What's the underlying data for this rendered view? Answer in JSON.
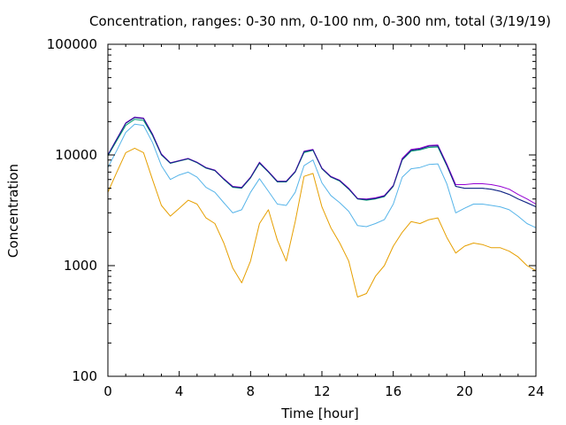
{
  "chart_data": {
    "type": "line",
    "title": "Concentration, ranges: 0-30 nm, 0-100 nm, 0-300 nm, total (3/19/19)",
    "xlabel": "Time [hour]",
    "ylabel": "Concentration",
    "xlim": [
      0,
      24
    ],
    "ylim": [
      100,
      100000
    ],
    "yscale": "log",
    "grid": false,
    "x_ticks": [
      0,
      4,
      8,
      12,
      16,
      20,
      24
    ],
    "x_tick_labels": [
      "0",
      "4",
      "8",
      "12",
      "16",
      "20",
      "24"
    ],
    "y_ticks": [
      100,
      1000,
      10000,
      100000
    ],
    "y_tick_labels": [
      "100",
      "1000",
      "10000",
      "100000"
    ],
    "x": [
      0,
      0.5,
      1,
      1.5,
      2,
      2.5,
      3,
      3.5,
      4,
      4.5,
      5,
      5.5,
      6,
      6.5,
      7,
      7.5,
      8,
      8.5,
      9,
      9.5,
      10,
      10.5,
      11,
      11.5,
      12,
      12.5,
      13,
      13.5,
      14,
      14.5,
      15,
      15.5,
      16,
      16.5,
      17,
      17.5,
      18,
      18.5,
      19,
      19.5,
      20,
      20.5,
      21,
      21.5,
      22,
      22.5,
      23,
      23.5,
      24
    ],
    "series": [
      {
        "color": "#e69f00",
        "values": [
          4600,
          7000,
          10500,
          11500,
          10500,
          6000,
          3500,
          2800,
          3300,
          3900,
          3600,
          2700,
          2400,
          1600,
          950,
          700,
          1100,
          2400,
          3200,
          1700,
          1100,
          2500,
          6400,
          6800,
          3400,
          2200,
          1600,
          1100,
          520,
          560,
          800,
          1000,
          1500,
          2000,
          2500,
          2400,
          2600,
          2700,
          1800,
          1300,
          1500,
          1600,
          1550,
          1450,
          1450,
          1350,
          1200,
          1000,
          900
        ]
      },
      {
        "color": "#56b4e9",
        "values": [
          7700,
          11000,
          16000,
          19000,
          18500,
          13000,
          8000,
          6000,
          6600,
          7000,
          6300,
          5100,
          4600,
          3700,
          3000,
          3200,
          4600,
          6100,
          4700,
          3600,
          3500,
          4600,
          8000,
          9000,
          5600,
          4300,
          3700,
          3100,
          2300,
          2250,
          2400,
          2600,
          3600,
          6300,
          7500,
          7700,
          8200,
          8300,
          5500,
          3000,
          3300,
          3600,
          3600,
          3500,
          3400,
          3200,
          2800,
          2400,
          2200
        ]
      },
      {
        "color": "#009e73",
        "values": [
          9800,
          13500,
          18500,
          21000,
          20500,
          15000,
          10000,
          8400,
          8800,
          9200,
          8500,
          7600,
          7200,
          6000,
          5100,
          5000,
          6200,
          8400,
          7000,
          5700,
          5700,
          7000,
          10500,
          11000,
          7500,
          6300,
          5800,
          4900,
          4000,
          3900,
          4000,
          4200,
          5200,
          9000,
          10800,
          11100,
          11700,
          11800,
          8000,
          5200,
          5000,
          5000,
          5000,
          4900,
          4700,
          4400,
          4000,
          3700,
          3400
        ]
      },
      {
        "color": "#9400d3",
        "values": [
          10000,
          14000,
          19500,
          22000,
          21500,
          15500,
          10200,
          8500,
          8900,
          9300,
          8600,
          7700,
          7300,
          6100,
          5200,
          5100,
          6300,
          8600,
          7100,
          5800,
          5800,
          7100,
          10800,
          11200,
          7600,
          6400,
          5900,
          5000,
          4050,
          4000,
          4100,
          4300,
          5300,
          9300,
          11200,
          11500,
          12200,
          12300,
          8300,
          5400,
          5400,
          5500,
          5500,
          5400,
          5200,
          4900,
          4400,
          4000,
          3600
        ]
      },
      {
        "color": "#1c1c8c",
        "values": [
          10000,
          13900,
          19300,
          21800,
          21300,
          15300,
          10100,
          8450,
          8850,
          9250,
          8550,
          7650,
          7250,
          6050,
          5150,
          5050,
          6250,
          8500,
          7050,
          5750,
          5750,
          7050,
          10700,
          11100,
          7550,
          6350,
          5850,
          4950,
          4020,
          3950,
          4050,
          4250,
          5250,
          9100,
          11000,
          11300,
          12000,
          12100,
          8100,
          5200,
          5000,
          5000,
          5000,
          4900,
          4700,
          4400,
          4000,
          3700,
          3400
        ]
      }
    ]
  }
}
